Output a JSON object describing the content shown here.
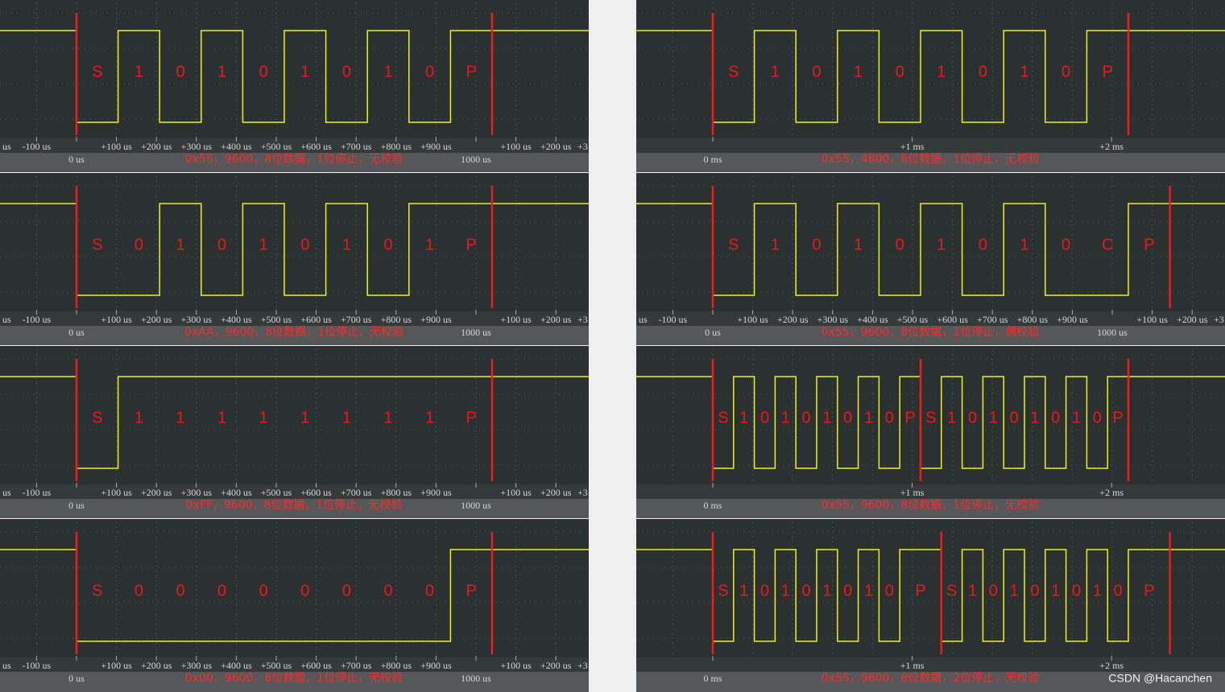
{
  "panels": [
    {
      "caption": "0x55，9600，8位数据，1位停止，无校验",
      "bits": [
        "S",
        "1",
        "0",
        "1",
        "0",
        "1",
        "0",
        "1",
        "0",
        "P"
      ],
      "axis": [
        "us",
        "-100 us",
        "0 us",
        "+100 us",
        "+200 us",
        "+300 us",
        "+400 us",
        "+500 us",
        "+600 us",
        "+700 us",
        "+800 us",
        "+900 us",
        "1000 us",
        "+100 us",
        "+200 us",
        "+3"
      ]
    },
    {
      "caption": "0xAA，9600，8位数据，1位停止，无校验",
      "bits": [
        "S",
        "0",
        "1",
        "0",
        "1",
        "0",
        "1",
        "0",
        "1",
        "P"
      ],
      "axis": [
        "us",
        "-100 us",
        "0 us",
        "+100 us",
        "+200 us",
        "+300 us",
        "+400 us",
        "+500 us",
        "+600 us",
        "+700 us",
        "+800 us",
        "+900 us",
        "1000 us",
        "+100 us",
        "+200 us",
        "+3"
      ]
    },
    {
      "caption": "0xFF，9600，8位数据，1位停止，无校验",
      "bits": [
        "S",
        "1",
        "1",
        "1",
        "1",
        "1",
        "1",
        "1",
        "1",
        "P"
      ],
      "axis": [
        "us",
        "-100 us",
        "0 us",
        "+100 us",
        "+200 us",
        "+300 us",
        "+400 us",
        "+500 us",
        "+600 us",
        "+700 us",
        "+800 us",
        "+900 us",
        "1000 us",
        "+100 us",
        "+200 us",
        "+3"
      ]
    },
    {
      "caption": "0x00，9600，8位数据，1位停止，无校验",
      "bits": [
        "S",
        "0",
        "0",
        "0",
        "0",
        "0",
        "0",
        "0",
        "0",
        "P"
      ],
      "axis": [
        "us",
        "-100 us",
        "0 us",
        "+100 us",
        "+200 us",
        "+300 us",
        "+400 us",
        "+500 us",
        "+600 us",
        "+700 us",
        "+800 us",
        "+900 us",
        "1000 us",
        "+100 us",
        "+200 us",
        "+3"
      ]
    },
    {
      "caption": "0x55，4800，8位数据，1位停止，无校验",
      "bits": [
        "S",
        "1",
        "0",
        "1",
        "0",
        "1",
        "0",
        "1",
        "0",
        "P"
      ],
      "axis": [
        "0 ms",
        "+1 ms",
        "+2 ms"
      ]
    },
    {
      "caption": "0x55，9600，8位数据，1位停止，偶校验",
      "bits": [
        "S",
        "1",
        "0",
        "1",
        "0",
        "1",
        "0",
        "1",
        "0",
        "C",
        "P"
      ],
      "axis": [
        "us",
        "-100 us",
        "0 us",
        "+100 us",
        "+200 us",
        "+300 us",
        "+400 us",
        "+500 us",
        "+600 us",
        "+700 us",
        "+800 us",
        "+900 us",
        "1000 us",
        "+100 us",
        "+200 us",
        "+3"
      ]
    },
    {
      "caption": "0x55，9600，8位数据，1位停止，无校验",
      "bits": [
        "S",
        "1",
        "0",
        "1",
        "0",
        "1",
        "0",
        "1",
        "0",
        "P",
        "S",
        "1",
        "0",
        "1",
        "0",
        "1",
        "0",
        "1",
        "0",
        "P"
      ],
      "axis": [
        "0 ms",
        "+1 ms",
        "+2 ms"
      ]
    },
    {
      "caption": "0x55，9600，8位数据，2位停止，无校验",
      "bits": [
        "S",
        "1",
        "0",
        "1",
        "0",
        "1",
        "0",
        "1",
        "0",
        "P",
        "S",
        "1",
        "0",
        "1",
        "0",
        "1",
        "0",
        "1",
        "0",
        "P"
      ],
      "axis": [
        "0 ms",
        "+1 ms",
        "+2 ms"
      ]
    }
  ],
  "watermark": "CSDN @Hacanchen"
}
